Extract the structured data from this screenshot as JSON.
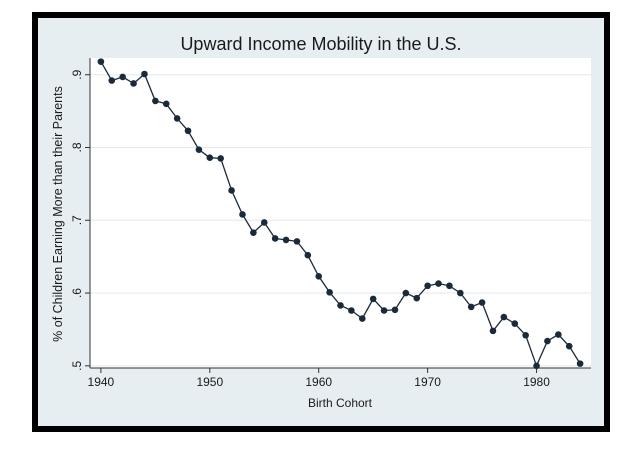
{
  "chart_data": {
    "type": "line",
    "title": "Upward Income Mobility in the U.S.",
    "xlabel": "Birth Cohort",
    "ylabel": "% of Children Earning More than their Parents",
    "xlim": [
      1939,
      1985
    ],
    "ylim": [
      0.497,
      0.923
    ],
    "xticks": [
      1940,
      1950,
      1960,
      1970,
      1980
    ],
    "xtick_labels": [
      "1940",
      "1950",
      "1960",
      "1970",
      "1980"
    ],
    "yticks": [
      0.5,
      0.6,
      0.7,
      0.8,
      0.9
    ],
    "ytick_labels": [
      ".5",
      ".6",
      ".7",
      ".8",
      ".9"
    ],
    "grid": "horizontal",
    "legend": "none",
    "colors": {
      "line": "#1b2a3a",
      "marker": "#1b2a3a",
      "plot_bg": "#ffffff",
      "panel_bg": "#e7eef1",
      "frame": "#000000",
      "grid": "#e3e8ec"
    },
    "series": [
      {
        "x": [
          1940,
          1941,
          1942,
          1943,
          1944,
          1945,
          1946,
          1947,
          1948,
          1949,
          1950,
          1951,
          1952,
          1953,
          1954,
          1955,
          1956,
          1957,
          1958,
          1959,
          1960,
          1961,
          1962,
          1963,
          1964,
          1965,
          1966,
          1967,
          1968,
          1969,
          1970,
          1971,
          1972,
          1973,
          1974,
          1975,
          1976,
          1977,
          1978,
          1979,
          1980,
          1981,
          1982,
          1983,
          1984
        ],
        "y": [
          0.918,
          0.892,
          0.897,
          0.888,
          0.901,
          0.864,
          0.86,
          0.84,
          0.823,
          0.797,
          0.786,
          0.785,
          0.741,
          0.708,
          0.683,
          0.697,
          0.675,
          0.673,
          0.671,
          0.652,
          0.623,
          0.601,
          0.583,
          0.576,
          0.565,
          0.592,
          0.576,
          0.577,
          0.6,
          0.593,
          0.61,
          0.613,
          0.61,
          0.6,
          0.581,
          0.587,
          0.548,
          0.567,
          0.558,
          0.542,
          0.5,
          0.534,
          0.543,
          0.527,
          0.503
        ]
      }
    ]
  }
}
